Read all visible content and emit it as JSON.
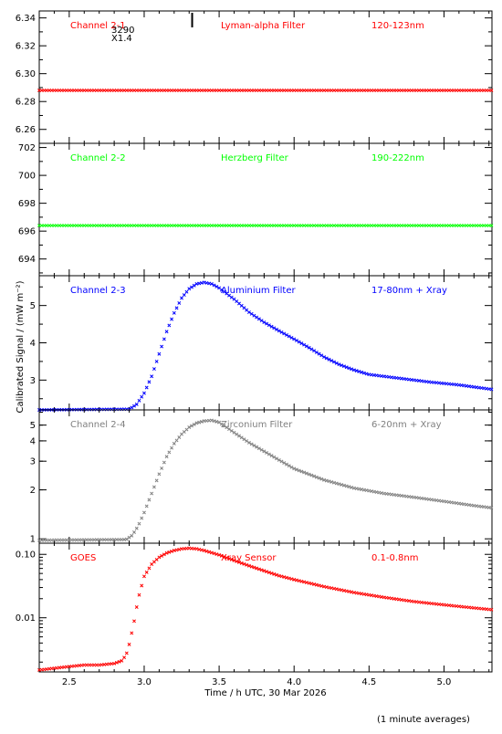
{
  "figure": {
    "xlabel": "Time / h UTC, 30 Mar 2026",
    "ylabel": "Calibrated Signal / (mW m⁻²)",
    "footnote": "(1 minute averages)",
    "stray_text": [
      "3290",
      "X1.4"
    ],
    "colors": {
      "axis": "#000000",
      "red": "#ff0000",
      "green": "#00ff00",
      "blue": "#0000ff",
      "gray": "#808080"
    }
  },
  "chart_data": [
    {
      "type": "scatter",
      "panel": "Channel 2-1",
      "labels": {
        "channel": "Channel 2-1",
        "filter": "Lyman-alpha Filter",
        "band": "120-123nm"
      },
      "color": "#ff0000",
      "scale": "linear",
      "xlim": [
        2.3,
        5.32
      ],
      "ylim": [
        6.25,
        6.345
      ],
      "yticks": [
        6.26,
        6.28,
        6.3,
        6.32,
        6.34
      ],
      "ytick_labels": [
        "6.26",
        "6.28",
        "6.30",
        "6.32",
        "6.34"
      ],
      "xticks": [
        2.5,
        3.0,
        3.5,
        4.0,
        4.5,
        5.0
      ],
      "flare_marker_x": 3.32,
      "series": [
        {
          "x": [
            2.3,
            5.32
          ],
          "y": [
            6.288,
            6.288
          ]
        }
      ]
    },
    {
      "type": "scatter",
      "panel": "Channel 2-2",
      "labels": {
        "channel": "Channel 2-2",
        "filter": "Herzberg Filter",
        "band": "190-222nm"
      },
      "color": "#00ff00",
      "scale": "linear",
      "xlim": [
        2.3,
        5.32
      ],
      "ylim": [
        692.8,
        702.3
      ],
      "yticks": [
        694,
        696,
        698,
        700,
        702
      ],
      "ytick_labels": [
        "694",
        "696",
        "698",
        "700",
        "702"
      ],
      "xticks": [
        2.5,
        3.0,
        3.5,
        4.0,
        4.5,
        5.0
      ],
      "series": [
        {
          "x": [
            2.3,
            5.32
          ],
          "y": [
            696.4,
            696.4
          ]
        }
      ]
    },
    {
      "type": "scatter",
      "panel": "Channel 2-3",
      "labels": {
        "channel": "Channel 2-3",
        "filter": "Aluminium Filter",
        "band": "17-80nm + Xray"
      },
      "color": "#0000ff",
      "scale": "linear",
      "xlim": [
        2.3,
        5.32
      ],
      "ylim": [
        2.2,
        5.8
      ],
      "yticks": [
        3,
        4,
        5
      ],
      "ytick_labels": [
        "3",
        "4",
        "5"
      ],
      "xticks": [
        2.5,
        3.0,
        3.5,
        4.0,
        4.5,
        5.0
      ],
      "series": [
        {
          "x": [
            2.3,
            2.9,
            2.95,
            3.0,
            3.05,
            3.1,
            3.15,
            3.2,
            3.25,
            3.3,
            3.35,
            3.4,
            3.45,
            3.5,
            3.6,
            3.7,
            3.8,
            3.9,
            4.0,
            4.1,
            4.2,
            4.3,
            4.4,
            4.5,
            4.7,
            4.9,
            5.1,
            5.32
          ],
          "y": [
            2.2,
            2.22,
            2.35,
            2.65,
            3.1,
            3.7,
            4.3,
            4.8,
            5.2,
            5.45,
            5.58,
            5.62,
            5.58,
            5.47,
            5.17,
            4.82,
            4.55,
            4.32,
            4.1,
            3.87,
            3.62,
            3.42,
            3.27,
            3.15,
            3.05,
            2.95,
            2.87,
            2.75
          ]
        }
      ]
    },
    {
      "type": "scatter",
      "panel": "Channel 2-4",
      "labels": {
        "channel": "Channel 2-4",
        "filter": "Zirconium Filter",
        "band": "6-20nm + Xray"
      },
      "color": "#808080",
      "scale": "log",
      "xlim": [
        2.3,
        5.32
      ],
      "ylim": [
        0.94,
        6.2
      ],
      "yticks": [
        1,
        2,
        3,
        4,
        5
      ],
      "ytick_labels": [
        "1",
        "2",
        "3",
        "4",
        "5"
      ],
      "xticks": [
        2.5,
        3.0,
        3.5,
        4.0,
        4.5,
        5.0
      ],
      "series": [
        {
          "x": [
            2.3,
            2.88,
            2.92,
            2.96,
            3.0,
            3.05,
            3.1,
            3.15,
            3.2,
            3.25,
            3.3,
            3.35,
            3.4,
            3.45,
            3.5,
            3.6,
            3.7,
            3.8,
            3.9,
            4.0,
            4.2,
            4.4,
            4.6,
            4.8,
            5.0,
            5.2,
            5.32
          ],
          "y": [
            0.98,
            0.99,
            1.05,
            1.2,
            1.45,
            1.9,
            2.5,
            3.2,
            3.85,
            4.4,
            4.85,
            5.15,
            5.3,
            5.35,
            5.2,
            4.5,
            3.9,
            3.45,
            3.05,
            2.7,
            2.3,
            2.05,
            1.9,
            1.8,
            1.7,
            1.6,
            1.55
          ]
        }
      ]
    },
    {
      "type": "scatter",
      "panel": "GOES",
      "labels": {
        "channel": "GOES",
        "filter": "Xray Sensor",
        "band": "0.1-0.8nm"
      },
      "color": "#ff0000",
      "scale": "log",
      "xlim": [
        2.3,
        5.32
      ],
      "ylim": [
        0.0014,
        0.15
      ],
      "yticks": [
        0.01,
        0.1
      ],
      "ytick_labels": [
        "0.01",
        "0.10"
      ],
      "xticks": [
        2.5,
        3.0,
        3.5,
        4.0,
        4.5,
        5.0
      ],
      "series": [
        {
          "x": [
            2.3,
            2.4,
            2.5,
            2.6,
            2.7,
            2.8,
            2.85,
            2.88,
            2.9,
            2.93,
            2.96,
            3.0,
            3.05,
            3.1,
            3.15,
            3.2,
            3.25,
            3.3,
            3.35,
            3.4,
            3.5,
            3.6,
            3.7,
            3.8,
            3.9,
            4.0,
            4.2,
            4.4,
            4.6,
            4.8,
            5.0,
            5.2,
            5.32
          ],
          "y": [
            0.0015,
            0.0016,
            0.0017,
            0.0018,
            0.0018,
            0.0019,
            0.0021,
            0.0026,
            0.0038,
            0.008,
            0.02,
            0.045,
            0.07,
            0.09,
            0.105,
            0.115,
            0.122,
            0.125,
            0.122,
            0.115,
            0.098,
            0.08,
            0.066,
            0.055,
            0.046,
            0.04,
            0.031,
            0.025,
            0.021,
            0.018,
            0.016,
            0.0143,
            0.0134
          ]
        }
      ]
    }
  ],
  "x_axis": {
    "ticks": [
      2.5,
      3.0,
      3.5,
      4.0,
      4.5,
      5.0
    ],
    "tick_labels": [
      "2.5",
      "3.0",
      "3.5",
      "4.0",
      "4.5",
      "5.0"
    ],
    "minor_step": 0.1
  }
}
